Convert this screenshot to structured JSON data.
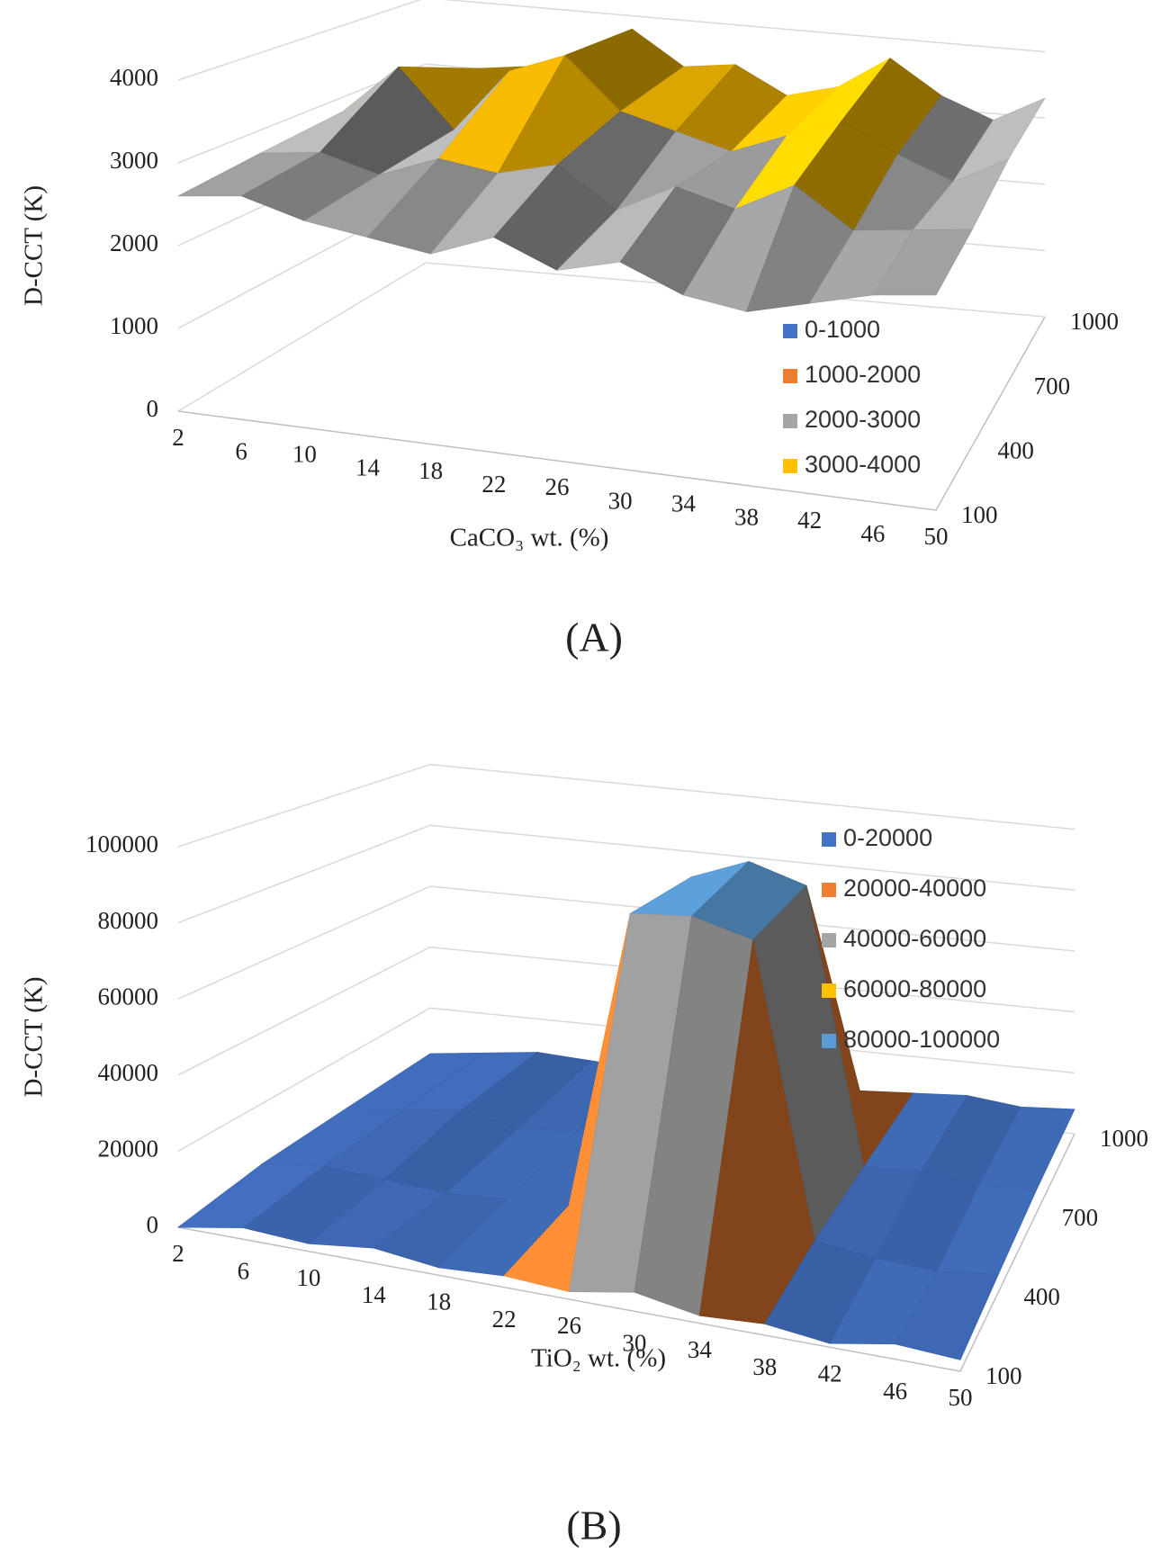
{
  "chart_data": [
    {
      "type": "surface",
      "caption": "(A)",
      "z_label": "D-CCT (K)",
      "x_label": "CaCO₃ wt. (%)",
      "x": [
        2,
        6,
        10,
        14,
        18,
        22,
        26,
        30,
        34,
        38,
        42,
        46,
        50
      ],
      "y": [
        100,
        400,
        700,
        1000
      ],
      "values": [
        [
          2600,
          2700,
          2500,
          2400,
          2300,
          2600,
          2300,
          2500,
          2200,
          2100,
          2300,
          2500,
          2600
        ],
        [
          2700,
          2800,
          2600,
          2900,
          2800,
          3000,
          2500,
          2900,
          2700,
          3100,
          2600,
          2700,
          2800
        ],
        [
          2800,
          3500,
          2700,
          3600,
          3900,
          3200,
          3000,
          2800,
          3100,
          3400,
          3000,
          2700,
          3100
        ],
        [
          2900,
          3000,
          3100,
          3200,
          3800,
          3300,
          3400,
          3000,
          3200,
          3700,
          3200,
          2900,
          3300
        ]
      ],
      "zlim": [
        0,
        4000
      ],
      "zticks": [
        0,
        1000,
        2000,
        3000,
        4000
      ],
      "bands": [
        {
          "name": "0-1000",
          "color": "#4472c4",
          "min": 0,
          "max": 1000
        },
        {
          "name": "1000-2000",
          "color": "#ed7d31",
          "min": 1000,
          "max": 2000
        },
        {
          "name": "2000-3000",
          "color": "#a5a5a5",
          "min": 2000,
          "max": 3000
        },
        {
          "name": "3000-4000",
          "color": "#ffc000",
          "min": 3000,
          "max": 4000
        }
      ]
    },
    {
      "type": "surface",
      "caption": "(B)",
      "z_label": "D-CCT (K)",
      "x_label": "TiO₂ wt. (%)",
      "x": [
        2,
        6,
        10,
        14,
        18,
        22,
        26,
        30,
        34,
        38,
        42,
        46,
        50
      ],
      "y": [
        100,
        400,
        700,
        1000
      ],
      "values": [
        [
          0,
          3000,
          2000,
          4000,
          2000,
          3000,
          2000,
          5000,
          2000,
          3000,
          1000,
          4000,
          3000
        ],
        [
          3000,
          5000,
          4000,
          3000,
          4000,
          5000,
          90000,
          92000,
          88000,
          6000,
          4000,
          3000,
          5000
        ],
        [
          4000,
          6000,
          8000,
          5000,
          6000,
          7000,
          88000,
          95000,
          90000,
          7000,
          8000,
          6000,
          7000
        ],
        [
          5000,
          7000,
          9000,
          8000,
          7000,
          6000,
          8000,
          9000,
          7000,
          8000,
          9000,
          7000,
          8000
        ]
      ],
      "zlim": [
        0,
        100000
      ],
      "zticks": [
        0,
        20000,
        40000,
        60000,
        80000,
        100000
      ],
      "bands": [
        {
          "name": "0-20000",
          "color": "#4472c4",
          "min": 0,
          "max": 20000
        },
        {
          "name": "20000-40000",
          "color": "#ed7d31",
          "min": 20000,
          "max": 40000
        },
        {
          "name": "40000-60000",
          "color": "#a5a5a5",
          "min": 40000,
          "max": 60000
        },
        {
          "name": "60000-80000",
          "color": "#ffc000",
          "min": 60000,
          "max": 80000
        },
        {
          "name": "80000-100000",
          "color": "#5b9bd5",
          "min": 80000,
          "max": 100000
        }
      ]
    }
  ]
}
